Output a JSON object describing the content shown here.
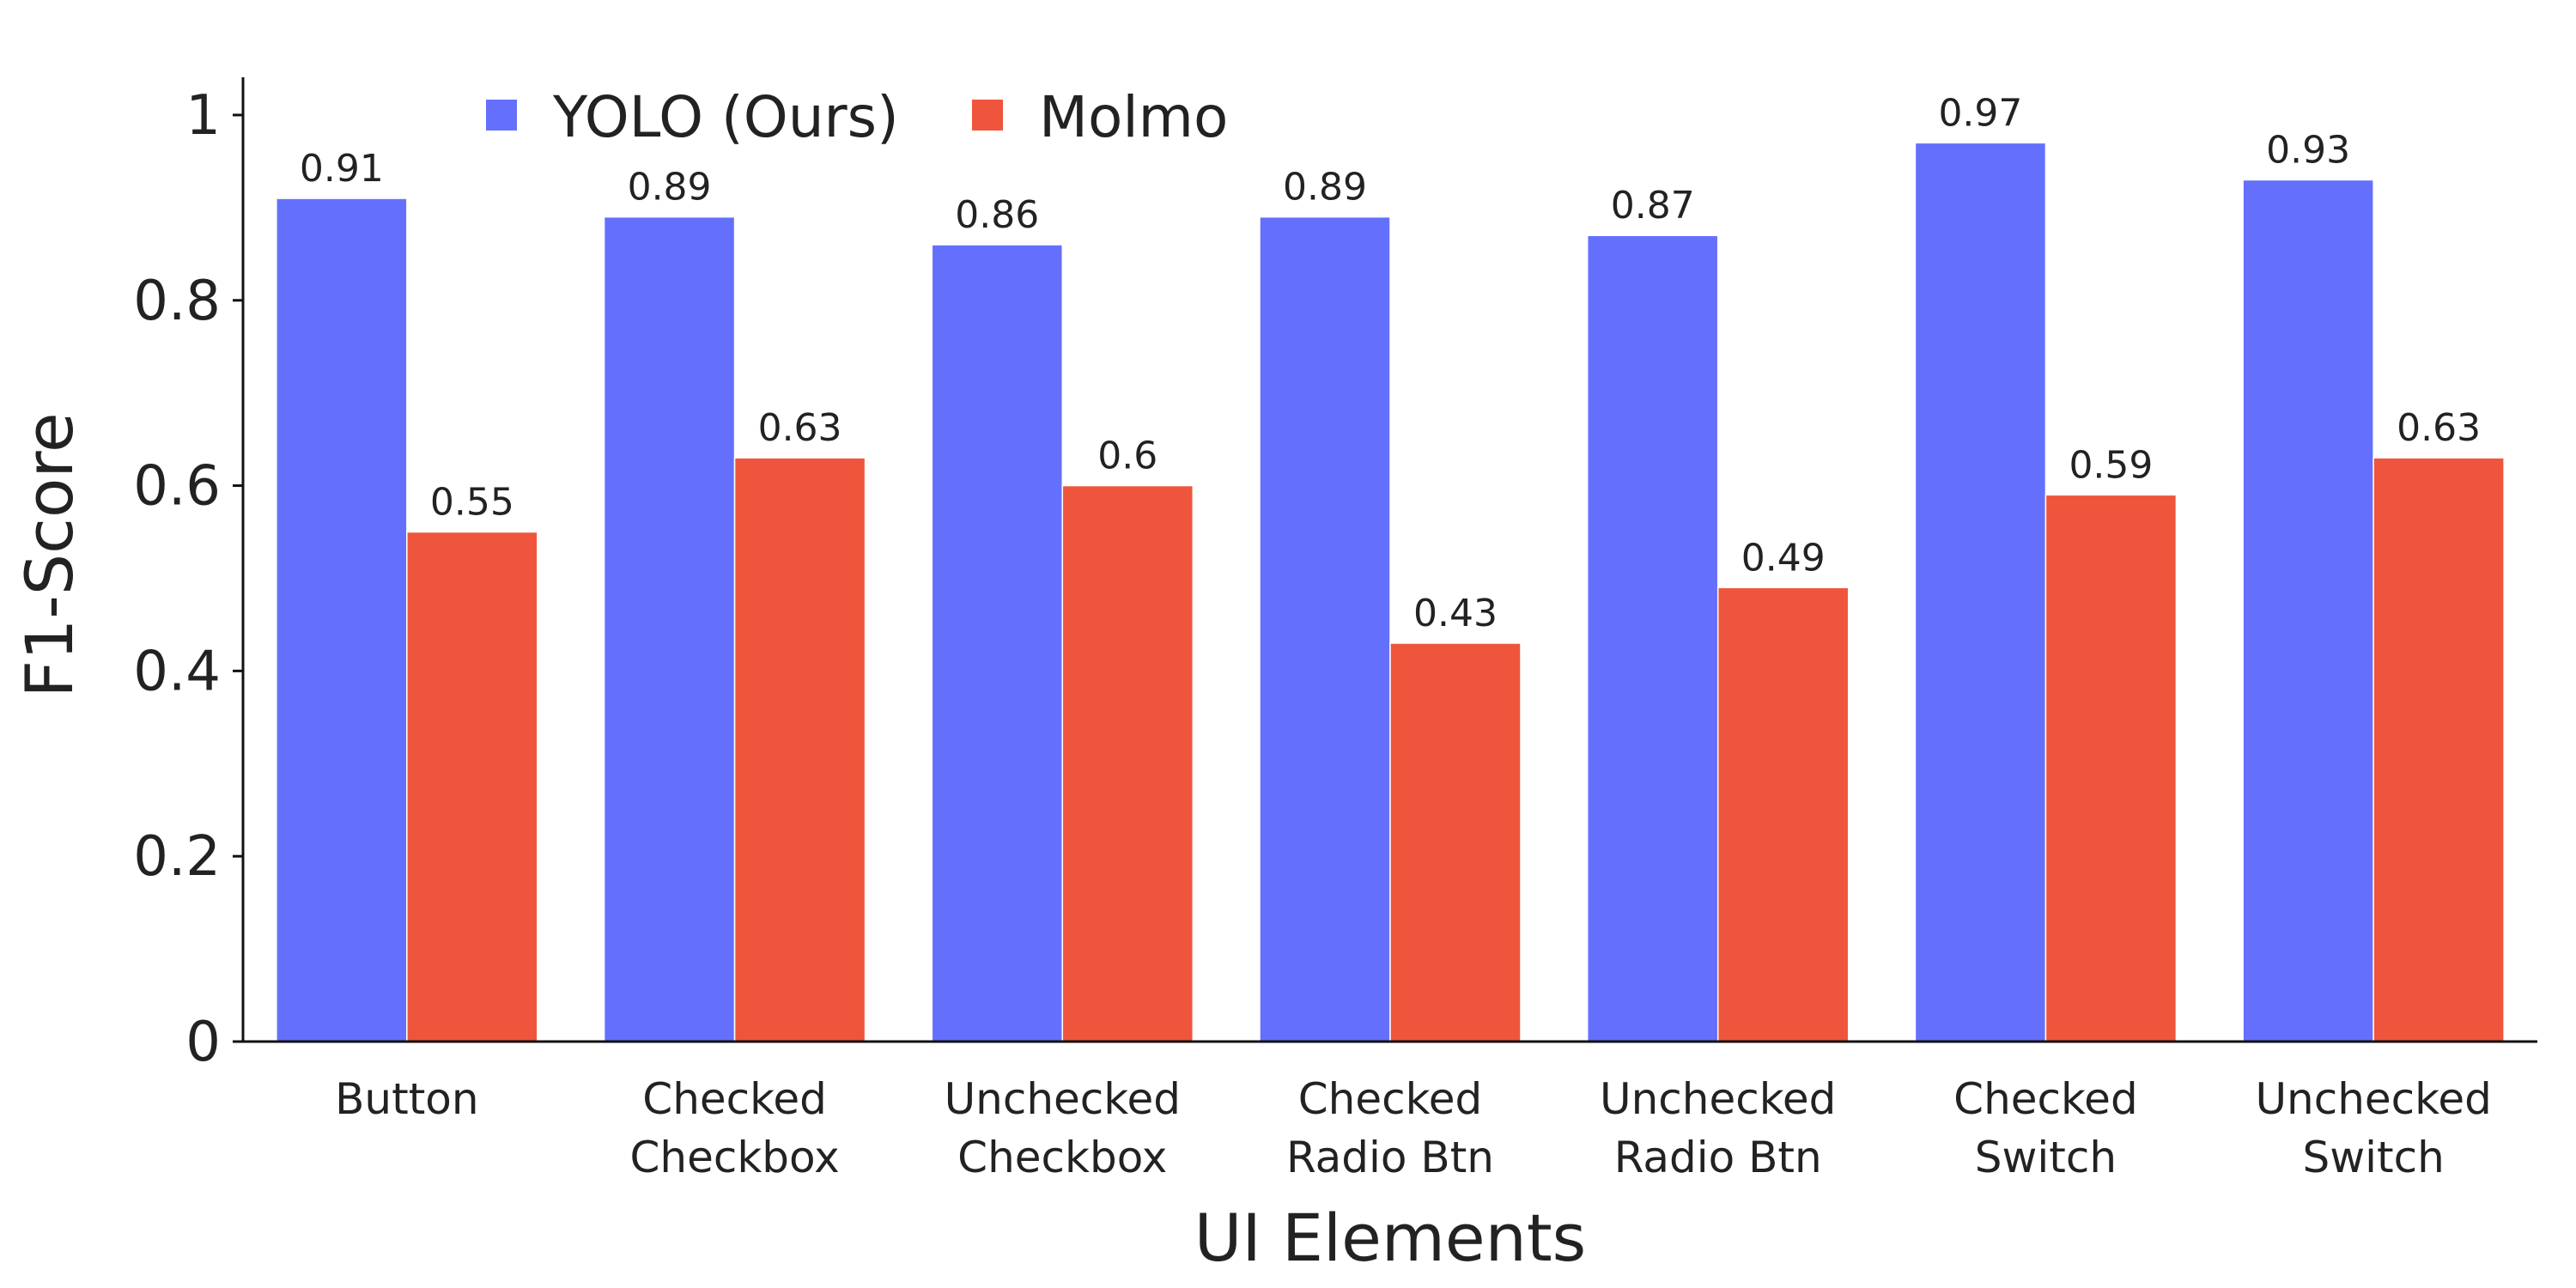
{
  "chart_data": {
    "type": "bar",
    "title": "",
    "xlabel": "UI Elements",
    "ylabel": "F1-Score",
    "ylim": [
      0,
      1.05
    ],
    "yticks": [
      0,
      0.2,
      0.4,
      0.6,
      0.8,
      1
    ],
    "ytick_labels": [
      "0",
      "0.2",
      "0.4",
      "0.6",
      "0.8",
      "1"
    ],
    "grid": false,
    "legend_position": "top-left",
    "categories": [
      [
        "Button"
      ],
      [
        "Checked",
        "Checkbox"
      ],
      [
        "Unchecked",
        "Checkbox"
      ],
      [
        "Checked",
        "Radio Btn"
      ],
      [
        "Unchecked",
        "Radio Btn"
      ],
      [
        "Checked",
        "Switch"
      ],
      [
        "Unchecked",
        "Switch"
      ]
    ],
    "series": [
      {
        "name": "YOLO (Ours)",
        "color": "#6470fc",
        "values": [
          0.91,
          0.89,
          0.86,
          0.89,
          0.87,
          0.97,
          0.93
        ],
        "labels": [
          "0.91",
          "0.89",
          "0.86",
          "0.89",
          "0.87",
          "0.97",
          "0.93"
        ]
      },
      {
        "name": "Molmo",
        "color": "#ef553c",
        "values": [
          0.55,
          0.63,
          0.6,
          0.43,
          0.49,
          0.59,
          0.63
        ],
        "labels": [
          "0.55",
          "0.63",
          "0.6",
          "0.43",
          "0.49",
          "0.59",
          "0.63"
        ]
      }
    ]
  }
}
